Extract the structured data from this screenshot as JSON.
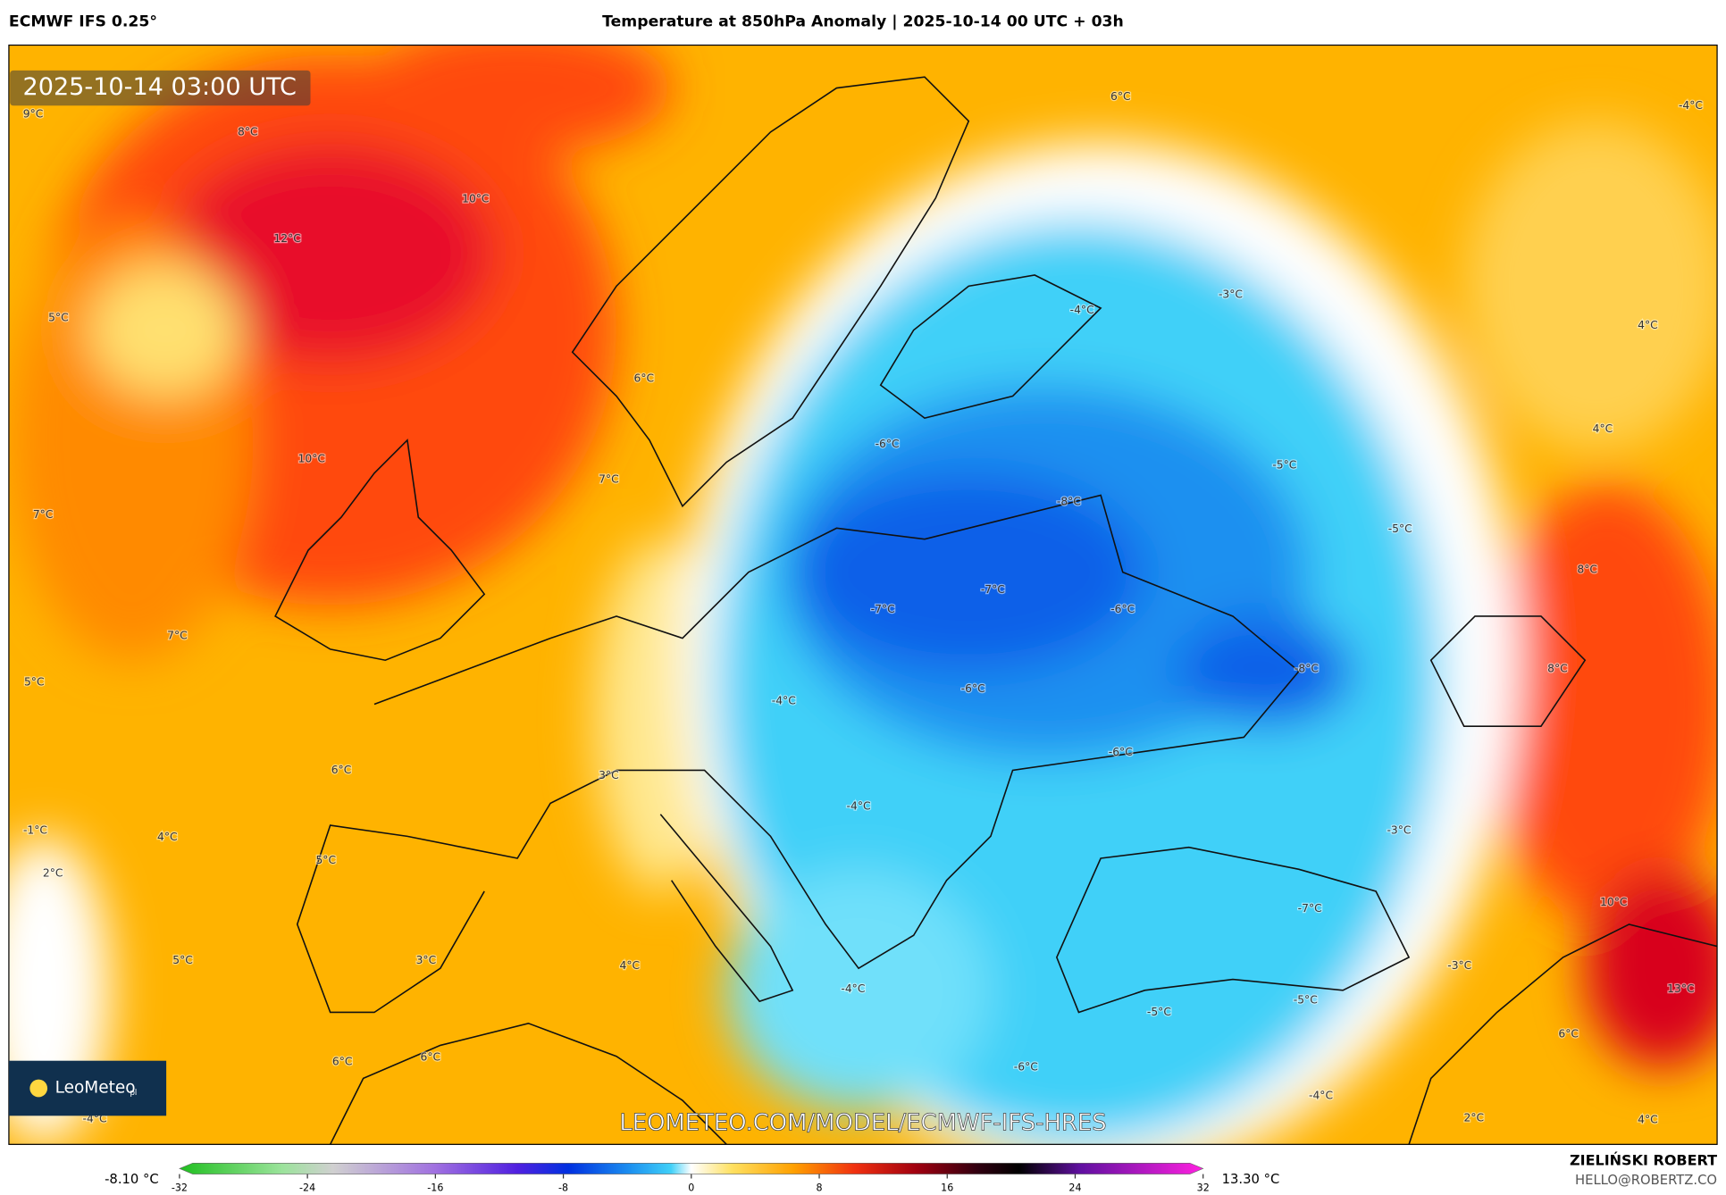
{
  "header": {
    "model": "ECMWF IFS 0.25°",
    "title": "Temperature at 850hPa Anomaly | 2025-10-14 00 UTC + 03h"
  },
  "map": {
    "timestamp": "2025-10-14 03:00 UTC",
    "logo": "LeoMeteo",
    "logo_suffix": "pl",
    "watermark": "LEOMETEO.COM/MODEL/ECMWF-IFS-HRES",
    "labels": [
      "9°C",
      "8°C",
      "10°C",
      "12°C",
      "5°C",
      "6°C",
      "10°C",
      "7°C",
      "7°C",
      "7°C",
      "5°C",
      "6°C",
      "3°C",
      "-1°C",
      "4°C",
      "2°C",
      "5°C",
      "5°C",
      "3°C",
      "4°C",
      "6°C",
      "6°C",
      "-4°C",
      "6°C",
      "-4°C",
      "-4°C",
      "-3°C",
      "4°C",
      "4°C",
      "-6°C",
      "-5°C",
      "-8°C",
      "-5°C",
      "-7°C",
      "-7°C",
      "-6°C",
      "8°C",
      "-8°C",
      "8°C",
      "-6°C",
      "-4°C",
      "-6°C",
      "-4°C",
      "-3°C",
      "-7°C",
      "10°C",
      "-3°C",
      "-4°C",
      "-5°C",
      "13°C",
      "-5°C",
      "6°C",
      "-6°C",
      "-4°C",
      "2°C",
      "4°C"
    ]
  },
  "colorbar": {
    "min_label": "-8.10 °C",
    "max_label": "13.30 °C",
    "range": [
      -32,
      32
    ],
    "ticks": [
      -32,
      -24,
      -16,
      -8,
      0,
      8,
      16,
      24,
      32
    ]
  },
  "footer": {
    "author": "ZIELIŃSKI ROBERT",
    "email": "HELLO@ROBERTZ.CO"
  }
}
